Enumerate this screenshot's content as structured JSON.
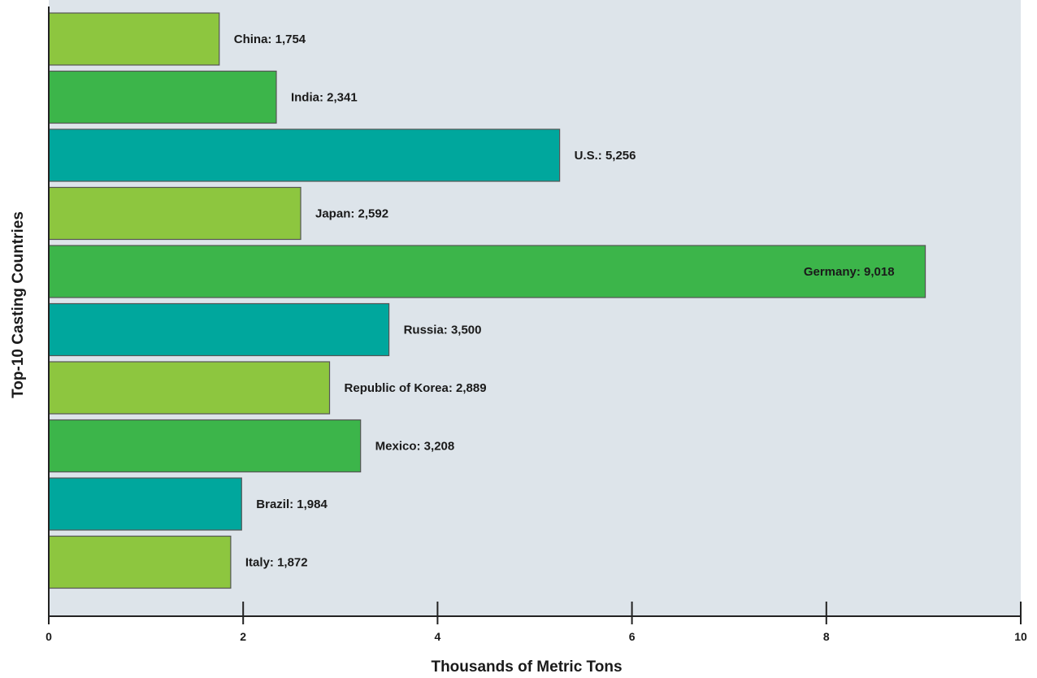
{
  "chart_data": {
    "type": "bar",
    "orientation": "horizontal",
    "title": "",
    "xlabel": "Thousands of Metric Tons",
    "ylabel": "Top-10 Casting Countries",
    "xlim": [
      0,
      10
    ],
    "x_ticks": [
      "0",
      "2",
      "4",
      "6",
      "8",
      "10"
    ],
    "grid": false,
    "bar_label_format": "{category}: {value}",
    "colors": {
      "background": "#dde4ea",
      "lime": "#8dc63f",
      "green": "#3cb54a",
      "teal": "#00a79d",
      "bar_outline": "#555555"
    },
    "bars": [
      {
        "category": "China",
        "value": 1.754,
        "label": "China: 1,754",
        "color": "lime",
        "label_inside": false
      },
      {
        "category": "India",
        "value": 2.341,
        "label": "India: 2,341",
        "color": "green",
        "label_inside": false
      },
      {
        "category": "U.S.",
        "value": 5.256,
        "label": "U.S.: 5,256",
        "color": "teal",
        "label_inside": false
      },
      {
        "category": "Japan",
        "value": 2.592,
        "label": "Japan: 2,592",
        "color": "lime",
        "label_inside": false
      },
      {
        "category": "Germany",
        "value": 9.018,
        "label": "Germany: 9,018",
        "color": "green",
        "label_inside": true
      },
      {
        "category": "Russia",
        "value": 3.5,
        "label": "Russia: 3,500",
        "color": "teal",
        "label_inside": false
      },
      {
        "category": "Republic of Korea",
        "value": 2.889,
        "label": "Republic of Korea: 2,889",
        "color": "lime",
        "label_inside": false
      },
      {
        "category": "Mexico",
        "value": 3.208,
        "label": "Mexico: 3,208",
        "color": "green",
        "label_inside": false
      },
      {
        "category": "Brazil",
        "value": 1.984,
        "label": "Brazil: 1,984",
        "color": "teal",
        "label_inside": false
      },
      {
        "category": "Italy",
        "value": 1.872,
        "label": "Italy: 1,872",
        "color": "lime",
        "label_inside": false
      }
    ]
  }
}
